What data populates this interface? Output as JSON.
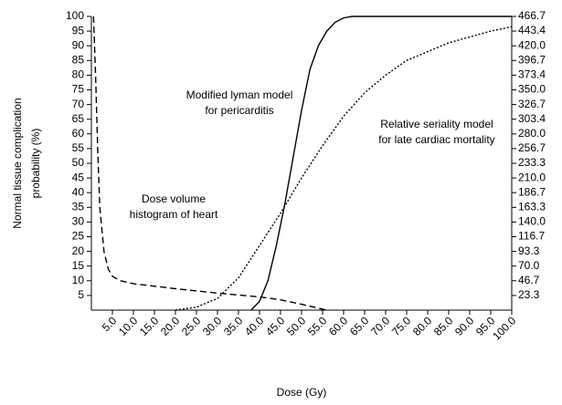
{
  "chart_data": {
    "type": "line",
    "xlabel": "Dose (Gy)",
    "ylabel": [
      "Normal tissue complication",
      "probability (%)"
    ],
    "xlim": [
      0,
      100
    ],
    "ylim": [
      0,
      100
    ],
    "y2lim": [
      0,
      466.7
    ],
    "xticks": [
      {
        "value": 5,
        "label": "5.0"
      },
      {
        "value": 10,
        "label": "10.0"
      },
      {
        "value": 15,
        "label": "15.0"
      },
      {
        "value": 20,
        "label": "20.0"
      },
      {
        "value": 25,
        "label": "25.0"
      },
      {
        "value": 30,
        "label": "30.0"
      },
      {
        "value": 35,
        "label": "35.0"
      },
      {
        "value": 40,
        "label": "40.0"
      },
      {
        "value": 45,
        "label": "45.0"
      },
      {
        "value": 50,
        "label": "50.0"
      },
      {
        "value": 55,
        "label": "55.0"
      },
      {
        "value": 60,
        "label": "60.0"
      },
      {
        "value": 65,
        "label": "65.0"
      },
      {
        "value": 70,
        "label": "70.0"
      },
      {
        "value": 75,
        "label": "75.0"
      },
      {
        "value": 80,
        "label": "80.0"
      },
      {
        "value": 85,
        "label": "85.0"
      },
      {
        "value": 90,
        "label": "90.0"
      },
      {
        "value": 95,
        "label": "95.0"
      },
      {
        "value": 100,
        "label": "100.0"
      }
    ],
    "yticks": [
      5,
      10,
      15,
      20,
      25,
      30,
      35,
      40,
      45,
      50,
      55,
      60,
      65,
      70,
      75,
      80,
      85,
      90,
      95,
      100
    ],
    "y2ticks": [
      23.3,
      46.7,
      {
        "value": 70,
        "label": "70.0"
      },
      93.3,
      116.7,
      {
        "value": 140,
        "label": "140.0"
      },
      163.3,
      186.7,
      {
        "value": 210,
        "label": "210.0"
      },
      233.3,
      256.7,
      {
        "value": 280,
        "label": "280.0"
      },
      303.4,
      326.7,
      {
        "value": 350,
        "label": "350.0"
      },
      373.4,
      396.7,
      {
        "value": 420,
        "label": "420.0"
      },
      443.4,
      466.7
    ],
    "series": [
      {
        "color": "#000000",
        "style": "dashed",
        "x": [
          0.5,
          1,
          1.5,
          2,
          3,
          4,
          5,
          7,
          10,
          20,
          30,
          40,
          45,
          50,
          53,
          56
        ],
        "values": [
          100,
          80,
          55,
          35,
          20,
          14,
          11.5,
          10,
          9,
          7.3,
          5.8,
          4.5,
          3.5,
          2,
          1,
          0
        ]
      },
      {
        "color": "#000000",
        "style": "solid",
        "x": [
          38,
          40,
          42,
          44,
          46,
          48,
          50,
          52,
          54,
          56,
          58,
          60,
          62,
          100
        ],
        "values": [
          0,
          3,
          10,
          22,
          36,
          52,
          68,
          82,
          90,
          95,
          98,
          99.5,
          100,
          100
        ]
      },
      {
        "color": "#000000",
        "style": "dotted",
        "x": [
          20,
          25,
          30,
          35,
          40,
          45,
          50,
          55,
          60,
          65,
          70,
          75,
          80,
          85,
          90,
          95,
          100
        ],
        "values": [
          0,
          1,
          4,
          11,
          22,
          33,
          45,
          56,
          66,
          74,
          80,
          85,
          88,
          91,
          93,
          95,
          96.5
        ]
      }
    ],
    "annotations": [
      [
        "Modified lyman model",
        "for pericarditis"
      ],
      [
        "Relative seriality model",
        "for late cardiac mortality"
      ],
      [
        "Dose volume",
        "histogram of heart"
      ]
    ]
  }
}
